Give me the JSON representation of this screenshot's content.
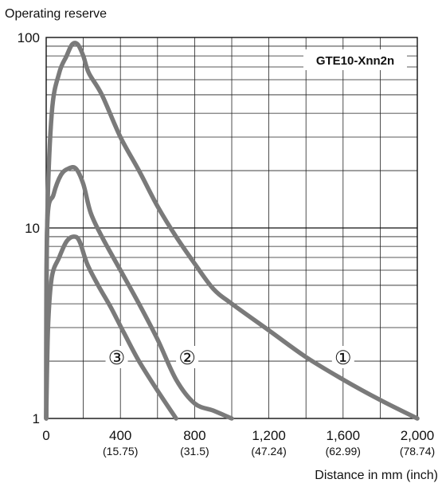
{
  "chart_data": {
    "type": "line",
    "title": "",
    "ylabel": "Operating reserve",
    "xlabel": "Distance in mm (inch)",
    "y_scale": "log",
    "ylim": [
      1,
      100
    ],
    "xlim": [
      0,
      2000
    ],
    "grid": true,
    "y_ticks": [
      {
        "value": 1,
        "label": "1"
      },
      {
        "value": 10,
        "label": "10"
      },
      {
        "value": 100,
        "label": "100"
      }
    ],
    "x_ticks": [
      {
        "value": 0,
        "label": "0",
        "sublabel": ""
      },
      {
        "value": 400,
        "label": "400",
        "sublabel": "(15.75)"
      },
      {
        "value": 800,
        "label": "800",
        "sublabel": "(31.5)"
      },
      {
        "value": 1200,
        "label": "1,200",
        "sublabel": "(47.24)"
      },
      {
        "value": 1600,
        "label": "1,600",
        "sublabel": "(62.99)"
      },
      {
        "value": 2000,
        "label": "2,000",
        "sublabel": "(78.74)"
      }
    ],
    "legend_box": "GTE10-Xnn2n",
    "line_color": "#7a7a7a",
    "series": [
      {
        "label": "①",
        "label_at": [
          1600,
          2.1
        ],
        "points": [
          [
            0,
            1
          ],
          [
            5,
            10
          ],
          [
            30,
            40
          ],
          [
            70,
            65
          ],
          [
            110,
            80
          ],
          [
            140,
            92
          ],
          [
            170,
            92
          ],
          [
            200,
            80
          ],
          [
            230,
            65
          ],
          [
            300,
            50
          ],
          [
            400,
            30
          ],
          [
            500,
            20
          ],
          [
            600,
            13
          ],
          [
            700,
            9
          ],
          [
            800,
            6.5
          ],
          [
            900,
            4.8
          ],
          [
            1000,
            4
          ],
          [
            1200,
            2.9
          ],
          [
            1400,
            2.1
          ],
          [
            1600,
            1.6
          ],
          [
            1800,
            1.25
          ],
          [
            2000,
            1
          ]
        ]
      },
      {
        "label": "②",
        "label_at": [
          760,
          2.1
        ],
        "points": [
          [
            0,
            1
          ],
          [
            5,
            10
          ],
          [
            40,
            15
          ],
          [
            80,
            19
          ],
          [
            120,
            20.5
          ],
          [
            160,
            20.5
          ],
          [
            200,
            17
          ],
          [
            240,
            12
          ],
          [
            300,
            9
          ],
          [
            400,
            6
          ],
          [
            500,
            4
          ],
          [
            600,
            2.6
          ],
          [
            700,
            1.6
          ],
          [
            800,
            1.2
          ],
          [
            900,
            1.1
          ],
          [
            1000,
            1
          ]
        ]
      },
      {
        "label": "③",
        "label_at": [
          380,
          2.1
        ],
        "points": [
          [
            0,
            1
          ],
          [
            10,
            3
          ],
          [
            30,
            5.5
          ],
          [
            70,
            7
          ],
          [
            110,
            8.5
          ],
          [
            150,
            9
          ],
          [
            180,
            8.5
          ],
          [
            220,
            6.5
          ],
          [
            280,
            5
          ],
          [
            350,
            3.8
          ],
          [
            420,
            2.8
          ],
          [
            500,
            2
          ],
          [
            600,
            1.4
          ],
          [
            700,
            1
          ]
        ]
      }
    ]
  }
}
